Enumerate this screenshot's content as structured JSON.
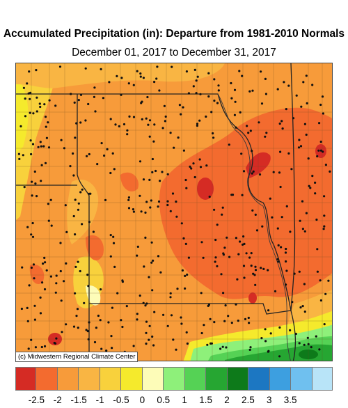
{
  "title": "Accumulated Precipitation (in): Departure from 1981-2010 Normals",
  "subtitle": "December 01, 2017 to December 31, 2017",
  "credit": "(c) Midwestern Regional Climate Center",
  "legend": {
    "colors": [
      "#d52b24",
      "#f36b2f",
      "#f79b3a",
      "#f9b543",
      "#f8d13c",
      "#f5ea2c",
      "#fdfcb8",
      "#8ef07a",
      "#55d255",
      "#26a632",
      "#0d7a1a",
      "#1c77c2",
      "#3d9fe0",
      "#6fc0ef",
      "#b8e4f8"
    ],
    "ticks": [
      "-2.5",
      "-2",
      "-1.5",
      "-1",
      "-0.5",
      "0",
      "0.5",
      "1",
      "1.5",
      "2",
      "2.5",
      "3",
      "3.5"
    ]
  }
}
